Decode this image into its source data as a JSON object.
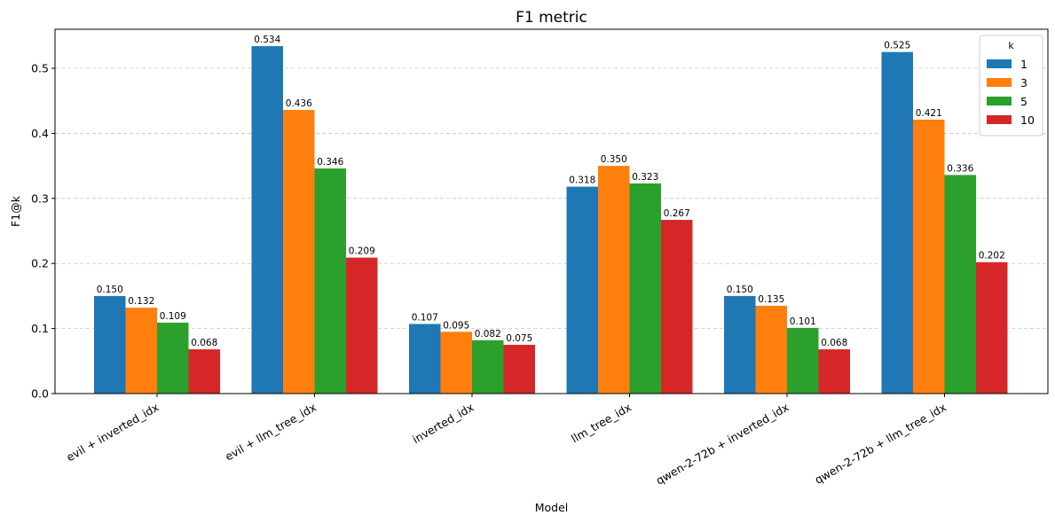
{
  "chart_data": {
    "type": "bar",
    "title": "F1 metric",
    "xlabel": "Model",
    "ylabel": "F1@k",
    "ylim": [
      0,
      0.56
    ],
    "yticks": [
      0.0,
      0.1,
      0.2,
      0.3,
      0.4,
      0.5
    ],
    "ytick_labels": [
      "0.0",
      "0.1",
      "0.2",
      "0.3",
      "0.4",
      "0.5"
    ],
    "grid": "y-dashed",
    "legend_title": "k",
    "legend_position": "top-right",
    "categories": [
      "evil + inverted_idx",
      "evil + llm_tree_idx",
      "inverted_idx",
      "llm_tree_idx",
      "qwen-2-72b + inverted_idx",
      "qwen-2-72b + llm_tree_idx"
    ],
    "series": [
      {
        "name": "1",
        "color": "#1f77b4",
        "values": [
          0.15,
          0.534,
          0.107,
          0.318,
          0.15,
          0.525
        ],
        "labels": [
          "0.150",
          "0.534",
          "0.107",
          "0.318",
          "0.150",
          "0.525"
        ]
      },
      {
        "name": "3",
        "color": "#ff7f0e",
        "values": [
          0.132,
          0.436,
          0.095,
          0.35,
          0.135,
          0.421
        ],
        "labels": [
          "0.132",
          "0.436",
          "0.095",
          "0.350",
          "0.135",
          "0.421"
        ]
      },
      {
        "name": "5",
        "color": "#2ca02c",
        "values": [
          0.109,
          0.346,
          0.082,
          0.323,
          0.101,
          0.336
        ],
        "labels": [
          "0.109",
          "0.346",
          "0.082",
          "0.323",
          "0.101",
          "0.336"
        ]
      },
      {
        "name": "10",
        "color": "#d62728",
        "values": [
          0.068,
          0.209,
          0.075,
          0.267,
          0.068,
          0.202
        ],
        "labels": [
          "0.068",
          "0.209",
          "0.075",
          "0.267",
          "0.068",
          "0.202"
        ]
      }
    ]
  }
}
